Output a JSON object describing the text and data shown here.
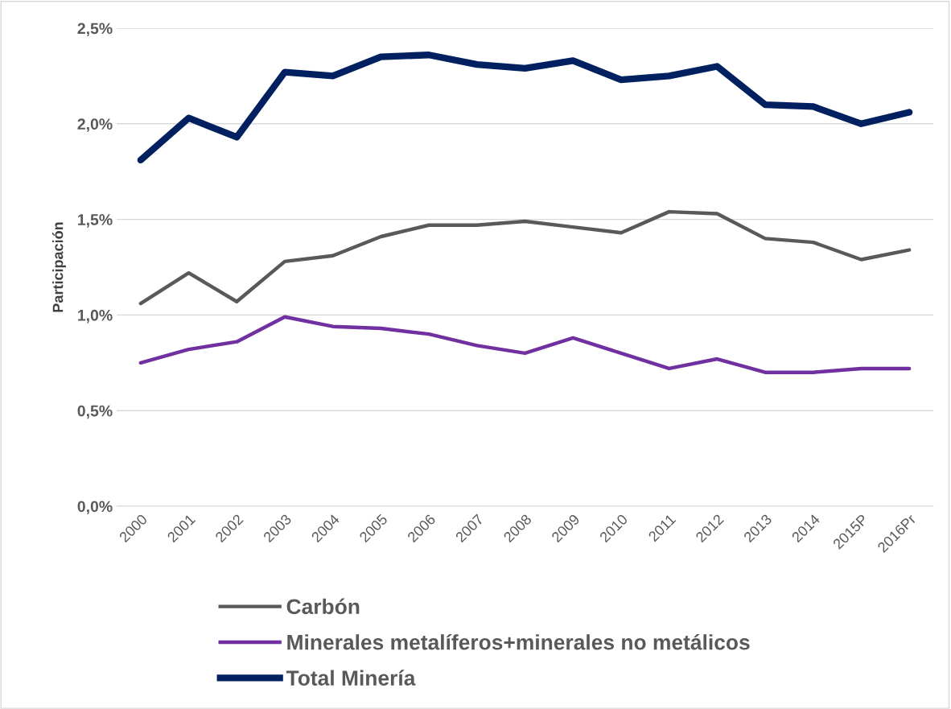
{
  "chart_data": {
    "type": "line",
    "ylabel": "Participación",
    "categories": [
      "2000",
      "2001",
      "2002",
      "2003",
      "2004",
      "2005",
      "2006",
      "2007",
      "2008",
      "2009",
      "2010",
      "2011",
      "2012",
      "2013",
      "2014",
      "2015P",
      "2016Pr"
    ],
    "series": [
      {
        "name": "Carbón",
        "color": "#595959",
        "values": [
          1.06,
          1.22,
          1.07,
          1.28,
          1.31,
          1.41,
          1.47,
          1.47,
          1.49,
          1.46,
          1.43,
          1.54,
          1.53,
          1.4,
          1.38,
          1.29,
          1.34
        ]
      },
      {
        "name": "Minerales metalíferos+minerales no metálicos",
        "color": "#7030a0",
        "values": [
          0.75,
          0.82,
          0.86,
          0.99,
          0.94,
          0.93,
          0.9,
          0.84,
          0.8,
          0.88,
          0.8,
          0.72,
          0.77,
          0.7,
          0.7,
          0.72,
          0.72
        ]
      },
      {
        "name": "Total Minería",
        "color": "#002060",
        "values": [
          1.81,
          2.03,
          1.93,
          2.27,
          2.25,
          2.35,
          2.36,
          2.31,
          2.29,
          2.33,
          2.23,
          2.25,
          2.3,
          2.1,
          2.09,
          2.0,
          2.06
        ]
      }
    ],
    "ylim": [
      0,
      2.5
    ],
    "yticks": [
      {
        "value": 0,
        "label": "0,0%"
      },
      {
        "value": 0.5,
        "label": "0,5%"
      },
      {
        "value": 1,
        "label": "1,0%"
      },
      {
        "value": 1.5,
        "label": "1,5%"
      },
      {
        "value": 2,
        "label": "2,0%"
      },
      {
        "value": 2.5,
        "label": "2,5%"
      }
    ],
    "grid": "y",
    "legend": "bottom",
    "marker": "none",
    "line_style": "solid"
  }
}
